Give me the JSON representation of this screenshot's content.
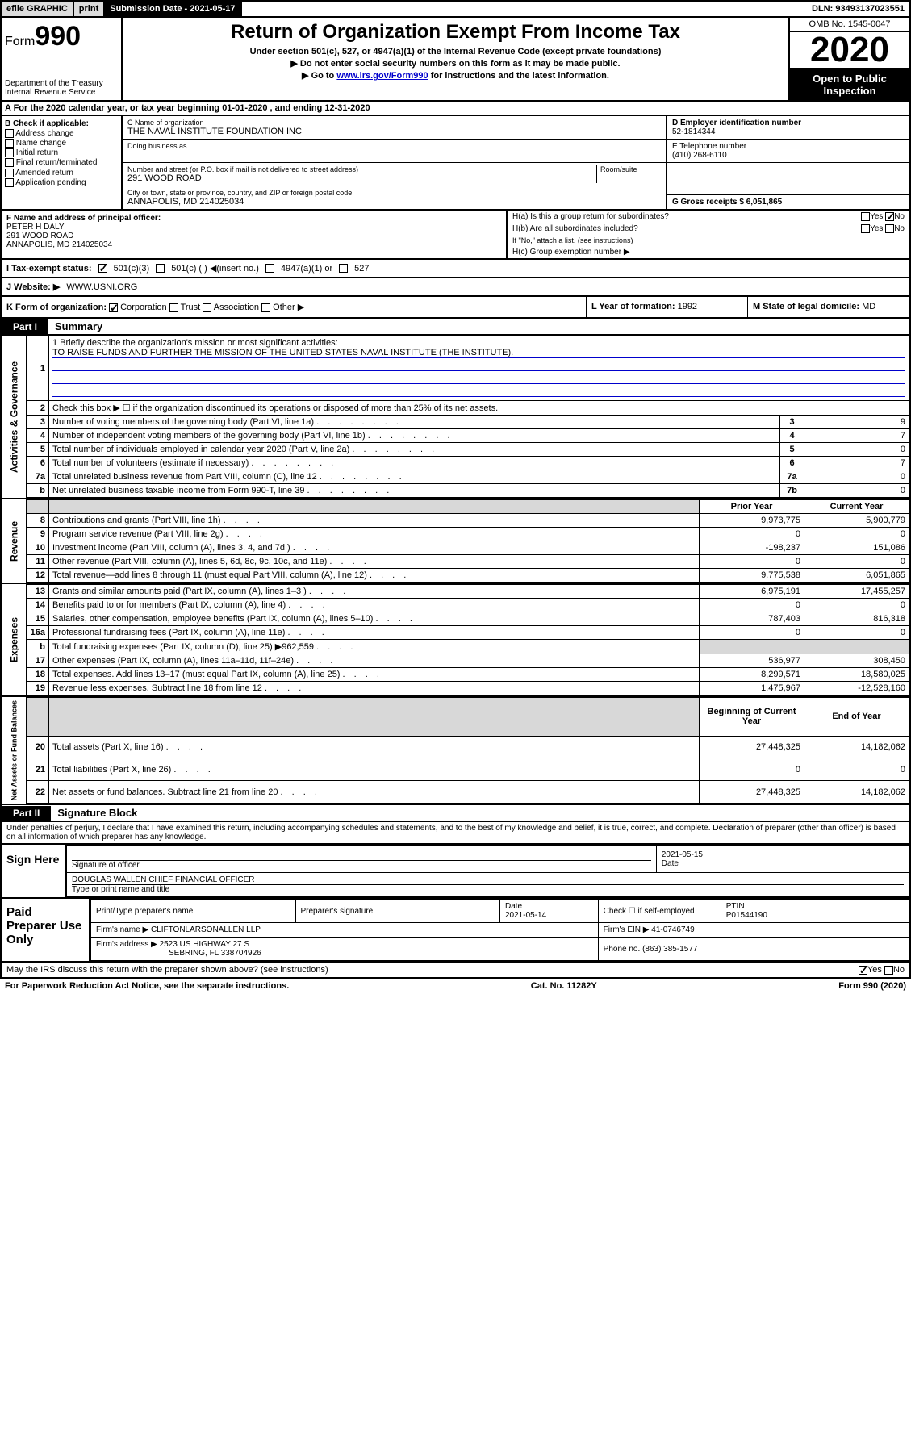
{
  "topbar": {
    "efile": "efile GRAPHIC",
    "print": "print",
    "subdate": "Submission Date - 2021-05-17",
    "dln": "DLN: 93493137023551"
  },
  "header": {
    "form_word": "Form",
    "form_num": "990",
    "dept": "Department of the Treasury\nInternal Revenue Service",
    "title": "Return of Organization Exempt From Income Tax",
    "sub1": "Under section 501(c), 527, or 4947(a)(1) of the Internal Revenue Code (except private foundations)",
    "sub2": "▶ Do not enter social security numbers on this form as it may be made public.",
    "sub3_pre": "▶ Go to ",
    "sub3_link": "www.irs.gov/Form990",
    "sub3_post": " for instructions and the latest information.",
    "omb": "OMB No. 1545-0047",
    "year": "2020",
    "open": "Open to Public Inspection"
  },
  "row_a": "A  For the 2020 calendar year, or tax year beginning 01-01-2020    , and ending 12-31-2020",
  "col_b": {
    "hdr": "B Check if applicable:",
    "items": [
      "Address change",
      "Name change",
      "Initial return",
      "Final return/terminated",
      "Amended return",
      "Application pending"
    ]
  },
  "col_c": {
    "name_lbl": "C Name of organization",
    "name_val": "THE NAVAL INSTITUTE FOUNDATION INC",
    "dba_lbl": "Doing business as",
    "addr_lbl": "Number and street (or P.O. box if mail is not delivered to street address)",
    "addr_val": "291 WOOD ROAD",
    "room_lbl": "Room/suite",
    "city_lbl": "City or town, state or province, country, and ZIP or foreign postal code",
    "city_val": "ANNAPOLIS, MD  214025034"
  },
  "col_deg": {
    "d_lbl": "D Employer identification number",
    "d_val": "52-1814344",
    "e_lbl": "E Telephone number",
    "e_val": "(410) 268-6110",
    "g_lbl": "G Gross receipts $ 6,051,865"
  },
  "section_f": {
    "lbl": "F Name and address of principal officer:",
    "line1": "PETER H DALY",
    "line2": "291 WOOD ROAD",
    "line3": "ANNAPOLIS, MD  214025034"
  },
  "section_h": {
    "ha": "H(a)  Is this a group return for subordinates?",
    "hb": "H(b)  Are all subordinates included?",
    "hb_note": "If \"No,\" attach a list. (see instructions)",
    "hc": "H(c)  Group exemption number ▶",
    "yes": "Yes",
    "no": "No"
  },
  "row_tax": {
    "lbl": "I   Tax-exempt status:",
    "o1": "501(c)(3)",
    "o2": "501(c) (  ) ◀(insert no.)",
    "o3": "4947(a)(1) or",
    "o4": "527"
  },
  "row_web": {
    "lbl": "J   Website: ▶",
    "val": "WWW.USNI.ORG"
  },
  "row_klm": {
    "k": "K Form of organization:",
    "k_opts": [
      "Corporation",
      "Trust",
      "Association",
      "Other ▶"
    ],
    "l_lbl": "L Year of formation:",
    "l_val": "1992",
    "m_lbl": "M State of legal domicile:",
    "m_val": "MD"
  },
  "parts": {
    "p1_tab": "Part I",
    "p1_title": "Summary",
    "p2_tab": "Part II",
    "p2_title": "Signature Block"
  },
  "summary": {
    "line1_lbl": "1  Briefly describe the organization's mission or most significant activities:",
    "line1_val": "TO RAISE FUNDS AND FURTHER THE MISSION OF THE UNITED STATES NAVAL INSTITUTE (THE INSTITUTE).",
    "line2": "Check this box ▶ ☐  if the organization discontinued its operations or disposed of more than 25% of its net assets.",
    "side1": "Activities & Governance",
    "side2": "Revenue",
    "side3": "Expenses",
    "side4": "Net Assets or Fund Balances",
    "hdr_prior": "Prior Year",
    "hdr_curr": "Current Year",
    "hdr_beg": "Beginning of Current Year",
    "hdr_end": "End of Year",
    "rows_gov": [
      {
        "n": "3",
        "d": "Number of voting members of the governing body (Part VI, line 1a)",
        "box": "3",
        "v": "9"
      },
      {
        "n": "4",
        "d": "Number of independent voting members of the governing body (Part VI, line 1b)",
        "box": "4",
        "v": "7"
      },
      {
        "n": "5",
        "d": "Total number of individuals employed in calendar year 2020 (Part V, line 2a)",
        "box": "5",
        "v": "0"
      },
      {
        "n": "6",
        "d": "Total number of volunteers (estimate if necessary)",
        "box": "6",
        "v": "7"
      },
      {
        "n": "7a",
        "d": "Total unrelated business revenue from Part VIII, column (C), line 12",
        "box": "7a",
        "v": "0"
      },
      {
        "n": "b",
        "d": "Net unrelated business taxable income from Form 990-T, line 39",
        "box": "7b",
        "v": "0"
      }
    ],
    "rows_rev": [
      {
        "n": "8",
        "d": "Contributions and grants (Part VIII, line 1h)",
        "p": "9,973,775",
        "c": "5,900,779"
      },
      {
        "n": "9",
        "d": "Program service revenue (Part VIII, line 2g)",
        "p": "0",
        "c": "0"
      },
      {
        "n": "10",
        "d": "Investment income (Part VIII, column (A), lines 3, 4, and 7d )",
        "p": "-198,237",
        "c": "151,086"
      },
      {
        "n": "11",
        "d": "Other revenue (Part VIII, column (A), lines 5, 6d, 8c, 9c, 10c, and 11e)",
        "p": "0",
        "c": "0"
      },
      {
        "n": "12",
        "d": "Total revenue—add lines 8 through 11 (must equal Part VIII, column (A), line 12)",
        "p": "9,775,538",
        "c": "6,051,865"
      }
    ],
    "rows_exp": [
      {
        "n": "13",
        "d": "Grants and similar amounts paid (Part IX, column (A), lines 1–3 )",
        "p": "6,975,191",
        "c": "17,455,257"
      },
      {
        "n": "14",
        "d": "Benefits paid to or for members (Part IX, column (A), line 4)",
        "p": "0",
        "c": "0"
      },
      {
        "n": "15",
        "d": "Salaries, other compensation, employee benefits (Part IX, column (A), lines 5–10)",
        "p": "787,403",
        "c": "816,318"
      },
      {
        "n": "16a",
        "d": "Professional fundraising fees (Part IX, column (A), line 11e)",
        "p": "0",
        "c": "0"
      },
      {
        "n": "b",
        "d": "Total fundraising expenses (Part IX, column (D), line 25) ▶962,559",
        "p": "",
        "c": "",
        "shade": true
      },
      {
        "n": "17",
        "d": "Other expenses (Part IX, column (A), lines 11a–11d, 11f–24e)",
        "p": "536,977",
        "c": "308,450"
      },
      {
        "n": "18",
        "d": "Total expenses. Add lines 13–17 (must equal Part IX, column (A), line 25)",
        "p": "8,299,571",
        "c": "18,580,025"
      },
      {
        "n": "19",
        "d": "Revenue less expenses. Subtract line 18 from line 12",
        "p": "1,475,967",
        "c": "-12,528,160"
      }
    ],
    "rows_net": [
      {
        "n": "20",
        "d": "Total assets (Part X, line 16)",
        "p": "27,448,325",
        "c": "14,182,062"
      },
      {
        "n": "21",
        "d": "Total liabilities (Part X, line 26)",
        "p": "0",
        "c": "0"
      },
      {
        "n": "22",
        "d": "Net assets or fund balances. Subtract line 21 from line 20",
        "p": "27,448,325",
        "c": "14,182,062"
      }
    ]
  },
  "perjury": "Under penalties of perjury, I declare that I have examined this return, including accompanying schedules and statements, and to the best of my knowledge and belief, it is true, correct, and complete. Declaration of preparer (other than officer) is based on all information of which preparer has any knowledge.",
  "sign": {
    "left": "Sign Here",
    "sig_lbl": "Signature of officer",
    "date_val": "2021-05-15",
    "date_lbl": "Date",
    "name_val": "DOUGLAS WALLEN  CHIEF FINANCIAL OFFICER",
    "name_lbl": "Type or print name and title"
  },
  "paid": {
    "left": "Paid Preparer Use Only",
    "h1": "Print/Type preparer's name",
    "h2": "Preparer's signature",
    "h3": "Date",
    "h3v": "2021-05-14",
    "h4": "Check ☐ if self-employed",
    "h5": "PTIN",
    "h5v": "P01544190",
    "firm_lbl": "Firm's name    ▶",
    "firm_val": "CLIFTONLARSONALLEN LLP",
    "ein_lbl": "Firm's EIN ▶",
    "ein_val": "41-0746749",
    "addr_lbl": "Firm's address ▶",
    "addr_val1": "2523 US HIGHWAY 27 S",
    "addr_val2": "SEBRING, FL  338704926",
    "phone_lbl": "Phone no.",
    "phone_val": "(863) 385-1577"
  },
  "footer": {
    "discuss": "May the IRS discuss this return with the preparer shown above? (see instructions)",
    "yes": "Yes",
    "no": "No",
    "pra": "For Paperwork Reduction Act Notice, see the separate instructions.",
    "cat": "Cat. No. 11282Y",
    "form": "Form 990 (2020)"
  }
}
